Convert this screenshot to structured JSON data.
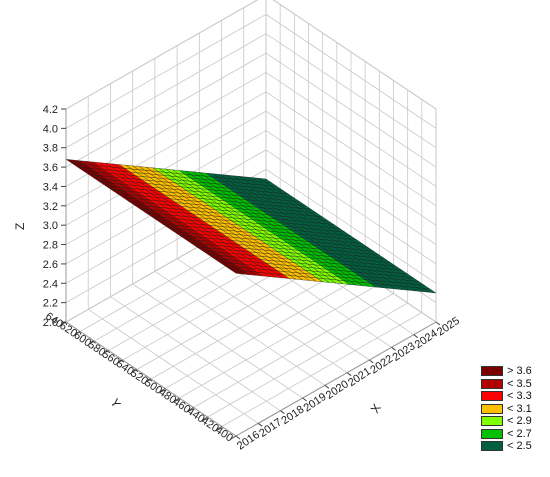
{
  "chart_data": {
    "type": "surface3d",
    "title": "",
    "xlabel": "X",
    "ylabel": "Y",
    "zlabel": "Z",
    "x_ticks": [
      2016,
      2017,
      2018,
      2019,
      2020,
      2021,
      2022,
      2023,
      2024,
      2025
    ],
    "y_ticks": [
      400,
      420,
      440,
      460,
      480,
      500,
      520,
      540,
      560,
      580,
      600,
      620,
      640
    ],
    "z_ticks": [
      "2.0",
      "2.2",
      "2.4",
      "2.6",
      "2.8",
      "3.0",
      "3.2",
      "3.4",
      "3.6",
      "3.8",
      "4.0",
      "4.2"
    ],
    "xlim": [
      2016,
      2025
    ],
    "ylim": [
      400,
      640
    ],
    "zlim": [
      2.0,
      4.2
    ],
    "surface": {
      "description_values": "plane decreasing linearly along X, constant along Y",
      "corners": [
        {
          "x": 2016,
          "y": 400,
          "z": 3.68
        },
        {
          "x": 2016,
          "y": 640,
          "z": 3.68
        },
        {
          "x": 2025,
          "y": 400,
          "z": 2.3
        },
        {
          "x": 2025,
          "y": 640,
          "z": 2.3
        }
      ]
    },
    "grid": true,
    "legend_position": "bottom-right",
    "legend": [
      {
        "label": "> 3.6",
        "color": "#7a0000"
      },
      {
        "label": "< 3.5",
        "color": "#b00000"
      },
      {
        "label": "< 3.3",
        "color": "#ff0000"
      },
      {
        "label": "< 3.1",
        "color": "#ffc000"
      },
      {
        "label": "< 2.9",
        "color": "#80ff00"
      },
      {
        "label": "< 2.7",
        "color": "#00c000"
      },
      {
        "label": "< 2.5",
        "color": "#006040"
      }
    ]
  }
}
